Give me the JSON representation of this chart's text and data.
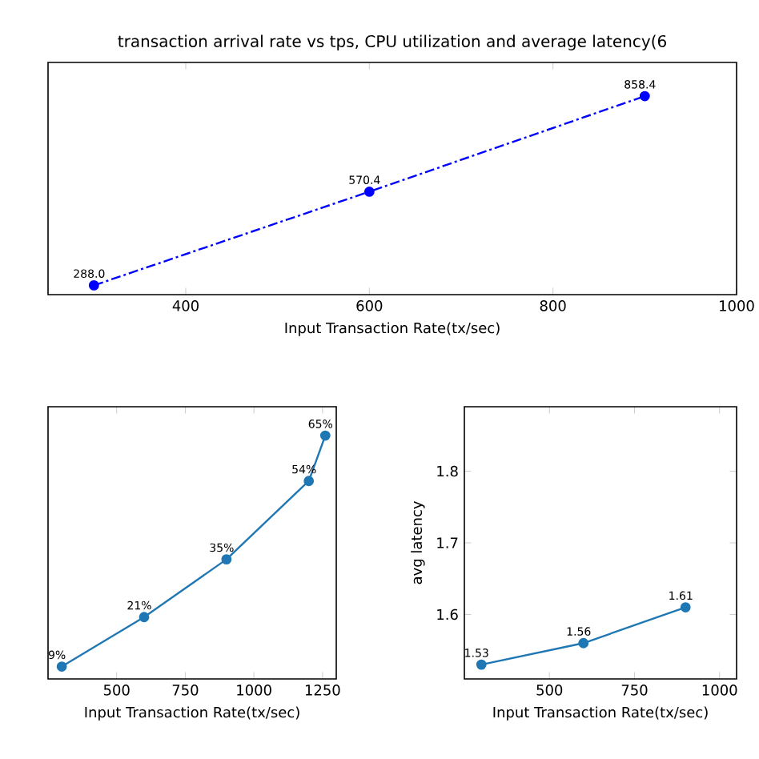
{
  "chart_data": [
    {
      "type": "line",
      "title": "transaction arrival rate vs tps, CPU utilization and average latency(6",
      "xlabel": "Input Transaction Rate(tx/sec)",
      "x": [
        300,
        600,
        900
      ],
      "xlim": [
        250,
        1000
      ],
      "xticks": [
        400,
        600,
        800,
        1000
      ],
      "ylim": [
        260,
        960
      ],
      "tick_labels": "x",
      "marker": "circle",
      "line_style": "dashdot",
      "series": [
        {
          "color": "#0000ff",
          "values": [
            288,
            570.4,
            858.4
          ],
          "value_labels": [
            "288.0",
            "570.4",
            "858.4"
          ]
        }
      ]
    },
    {
      "type": "line",
      "xlabel": "Input Transaction Rate(tx/sec)",
      "x": [
        300,
        600,
        900,
        1200,
        1260
      ],
      "xlim": [
        250,
        1300
      ],
      "xticks": [
        500,
        750,
        1000,
        1250
      ],
      "ylim": [
        6,
        72
      ],
      "tick_labels": "x",
      "marker": "circle",
      "line_style": "solid",
      "series": [
        {
          "color": "#1f77b4",
          "values": [
            9,
            21,
            35,
            54,
            65
          ],
          "value_labels": [
            "9%",
            "21%",
            "35%",
            "54%",
            "65%"
          ]
        }
      ]
    },
    {
      "type": "line",
      "xlabel": "Input Transaction Rate(tx/sec)",
      "ylabel": "avg latency",
      "x": [
        300,
        600,
        900
      ],
      "xlim": [
        250,
        1050
      ],
      "xticks": [
        500,
        750,
        1000
      ],
      "ylim": [
        1.51,
        1.89
      ],
      "yticks": [
        1.6,
        1.7,
        1.8
      ],
      "marker": "circle",
      "line_style": "solid",
      "data_labels": true,
      "series": [
        {
          "color": "#1f77b4",
          "values": [
            1.53,
            1.56,
            1.61
          ]
        }
      ]
    }
  ]
}
